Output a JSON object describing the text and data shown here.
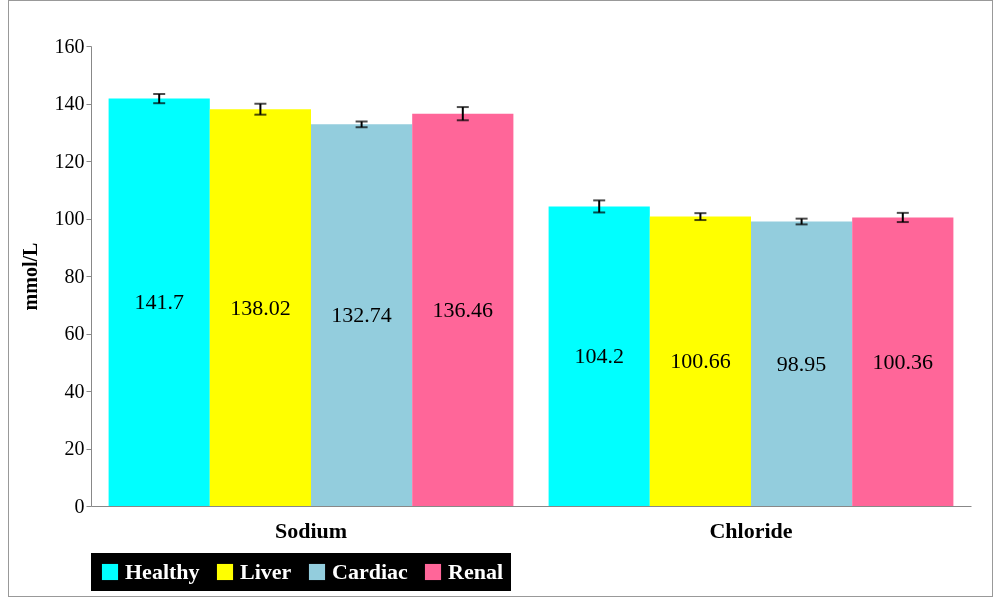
{
  "chart_data": {
    "type": "bar",
    "ylabel": "mmol/L",
    "categories": [
      "Sodium",
      "Chloride"
    ],
    "series": [
      {
        "name": "Healthy",
        "color": "#00ffff",
        "values": [
          141.7,
          104.2
        ],
        "errors": [
          1.6,
          2.1
        ]
      },
      {
        "name": "Liver",
        "color": "#ffff00",
        "values": [
          138.02,
          100.66
        ],
        "errors": [
          1.9,
          1.2
        ]
      },
      {
        "name": "Cardiac",
        "color": "#93cddd",
        "values": [
          132.74,
          98.95
        ],
        "errors": [
          1.0,
          1.0
        ]
      },
      {
        "name": "Renal",
        "color": "#ff6699",
        "values": [
          136.46,
          100.36
        ],
        "errors": [
          2.3,
          1.6
        ]
      }
    ],
    "ylim": [
      0,
      160
    ],
    "yticks": [
      0,
      20,
      40,
      60,
      80,
      100,
      120,
      140,
      160
    ],
    "grid": false,
    "legend": "bottom",
    "data_labels": true
  }
}
